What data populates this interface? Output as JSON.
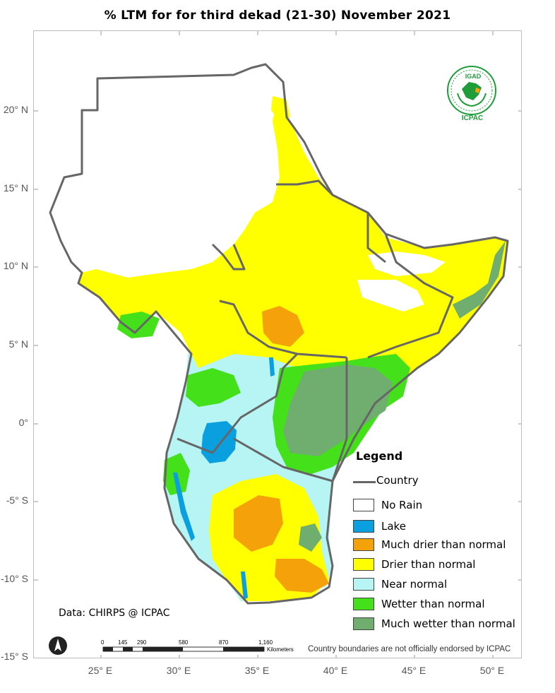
{
  "title": "% LTM for  for third dekad (21-30) November 2021",
  "lat_ticks": [
    "20° N",
    "15° N",
    "10° N",
    "5° N",
    "0°",
    "-5° S",
    "-10° S",
    "-15° S"
  ],
  "lon_ticks": [
    "25° E",
    "30° E",
    "35° E",
    "40° E",
    "45° E",
    "50° E"
  ],
  "legend": {
    "title": "Legend",
    "country_label": "Country",
    "items": [
      {
        "label": "No Rain",
        "color": "#ffffff"
      },
      {
        "label": "Lake",
        "color": "#0aa0e0"
      },
      {
        "label": "Much drier than normal",
        "color": "#f5a20a"
      },
      {
        "label": "Drier than normal",
        "color": "#ffff00"
      },
      {
        "label": "Near normal",
        "color": "#b6f5f3"
      },
      {
        "label": "Wetter than normal",
        "color": "#44e01a"
      },
      {
        "label": "Much wetter than normal",
        "color": "#6fae6f"
      }
    ]
  },
  "data_credit": "Data: CHIRPS @ ICPAC",
  "disclaimer": "Country boundaries are not officially endorsed by ICPAC",
  "scale": {
    "ticks": [
      "0",
      "145",
      "290",
      "580",
      "870",
      "1,160"
    ],
    "unit": "Kilometers"
  },
  "logo": {
    "top_text": "IGAD",
    "bottom_text": "ICPAC"
  },
  "colors": {
    "border": "#666666",
    "accent": "#1f9d3a"
  }
}
